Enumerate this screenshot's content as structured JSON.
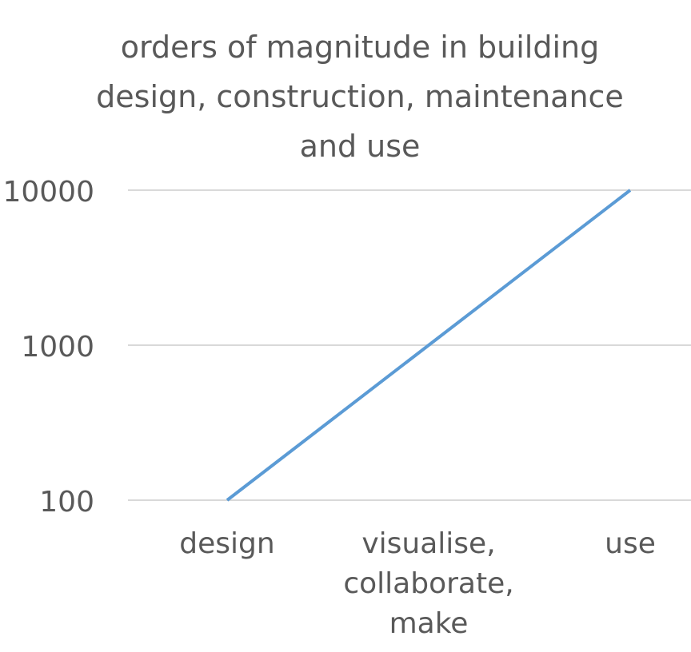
{
  "chart_data": {
    "type": "line",
    "title": "orders of magnitude in building design, construction, maintenance and use",
    "categories": [
      "design",
      "visualise, collaborate, make",
      "use"
    ],
    "category_lines": [
      [
        "design"
      ],
      [
        "visualise,",
        "collaborate,",
        "make"
      ],
      [
        "use"
      ]
    ],
    "series": [
      {
        "values": [
          100,
          1000,
          10000
        ]
      }
    ],
    "y_scale": "log",
    "y_ticks": [
      "100",
      "1000",
      "10000"
    ],
    "ylim": [
      100,
      10000
    ],
    "xlabel": "",
    "ylabel": "",
    "grid": "horizontal",
    "legend": "none",
    "colors": {
      "line": "#5B9BD5",
      "grid": "#D9D9D9",
      "text": "#595959"
    }
  }
}
